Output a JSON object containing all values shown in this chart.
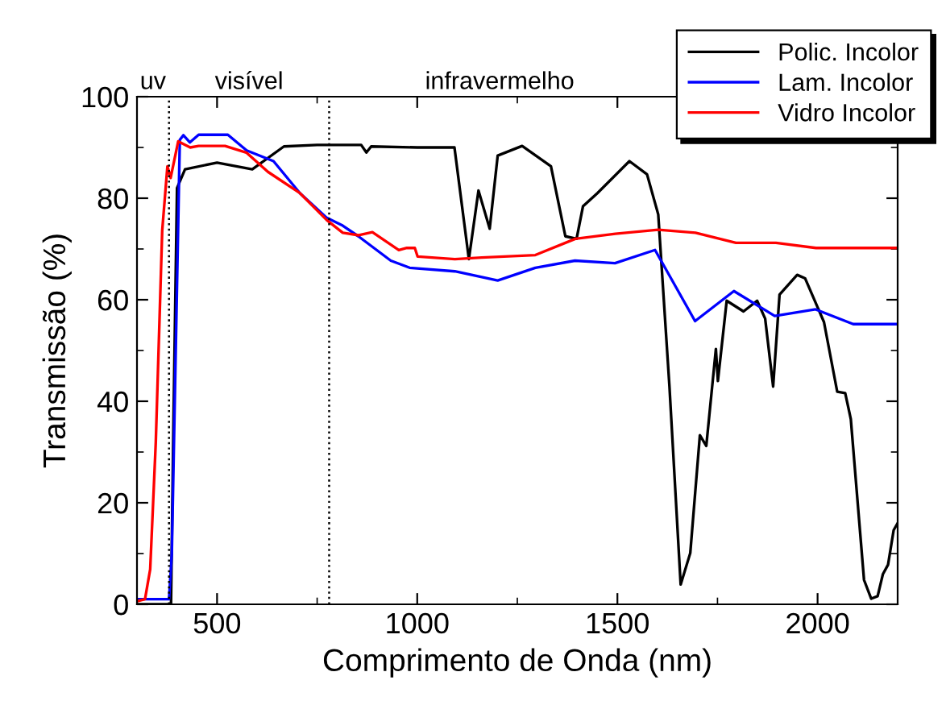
{
  "chart_data": {
    "type": "line",
    "xlabel": "Comprimento de Onda (nm)",
    "ylabel": "Transmissão (%)",
    "xlim": [
      300,
      2200
    ],
    "xticks": [
      500,
      1000,
      1500,
      2000
    ],
    "ylim": [
      0,
      100
    ],
    "yticks": [
      0,
      20,
      40,
      60,
      80,
      100
    ],
    "grid": false,
    "legend": "top right",
    "line_style": "solid",
    "marker": "none",
    "ref_lines": [
      {
        "axis": "x",
        "value": 380,
        "line_style": "dotted",
        "color": "#000000"
      },
      {
        "axis": "x",
        "value": 780,
        "line_style": "dotted",
        "color": "#000000"
      }
    ],
    "annotations": [
      "uv",
      "visível",
      "infravermelho"
    ],
    "series": [
      {
        "name": "Polic. Incolor",
        "color": "#000000",
        "x": [
          300,
          385,
          390,
          400,
          420,
          500,
          588,
          667,
          750,
          860,
          873,
          885,
          1000,
          1093,
          1129,
          1153,
          1181,
          1201,
          1262,
          1334,
          1370,
          1398,
          1414,
          1450,
          1530,
          1574,
          1602,
          1630,
          1658,
          1682,
          1706,
          1722,
          1746,
          1751,
          1773,
          1815,
          1849,
          1869,
          1889,
          1905,
          1949,
          1969,
          2016,
          2049,
          2069,
          2083,
          2116,
          2134,
          2150,
          2163,
          2176,
          2190,
          2200
        ],
        "values": [
          0,
          0,
          30,
          82,
          85.7,
          87,
          85.7,
          90.2,
          90.5,
          90.5,
          89,
          90.2,
          90,
          90,
          68,
          81.5,
          74,
          88.4,
          90.3,
          86.3,
          72.5,
          72,
          78.4,
          81,
          87.3,
          84.7,
          76.8,
          42.9,
          3.9,
          10.1,
          33.3,
          31.2,
          50.3,
          44,
          59.8,
          57.7,
          59.8,
          56.3,
          42.9,
          61,
          64.9,
          64.2,
          55.6,
          41.9,
          41.6,
          36.5,
          4.8,
          1.1,
          1.6,
          5.9,
          7.8,
          14.6,
          16
        ]
      },
      {
        "name": "Lam. Incolor",
        "color": "#0000ff",
        "x": [
          300,
          380,
          387,
          407,
          416,
          432,
          454,
          527,
          574,
          641,
          707,
          773,
          814,
          853,
          934,
          981,
          1094,
          1201,
          1295,
          1394,
          1494,
          1594,
          1694,
          1791,
          1893,
          1995,
          2089,
          2200
        ],
        "values": [
          1,
          1,
          10,
          91.5,
          92.4,
          91,
          92.5,
          92.5,
          89.4,
          87.3,
          81,
          76.2,
          74.6,
          72.5,
          67.7,
          66.3,
          65.6,
          63.8,
          66.3,
          67.7,
          67.2,
          69.8,
          55.8,
          61.7,
          56.8,
          58.1,
          55.2,
          55.2
        ]
      },
      {
        "name": "Vidro Incolor",
        "color": "#ff0000",
        "x": [
          300,
          320,
          333,
          347,
          363,
          376,
          384,
          403,
          433,
          454,
          520,
          573,
          627,
          707,
          774,
          814,
          854,
          888,
          954,
          974,
          994,
          1001,
          1094,
          1161,
          1295,
          1395,
          1495,
          1602,
          1695,
          1796,
          1896,
          1996,
          2200
        ],
        "values": [
          0.6,
          1,
          6.9,
          32,
          73.6,
          86.3,
          84,
          91.2,
          90,
          90.3,
          90.3,
          89,
          85.2,
          81,
          75.7,
          73.2,
          72.7,
          73.3,
          69.8,
          70.2,
          70.2,
          68.5,
          68,
          68.3,
          68.8,
          72,
          73,
          73.8,
          73.2,
          71.2,
          71.2,
          70.2,
          70.2
        ]
      }
    ]
  }
}
